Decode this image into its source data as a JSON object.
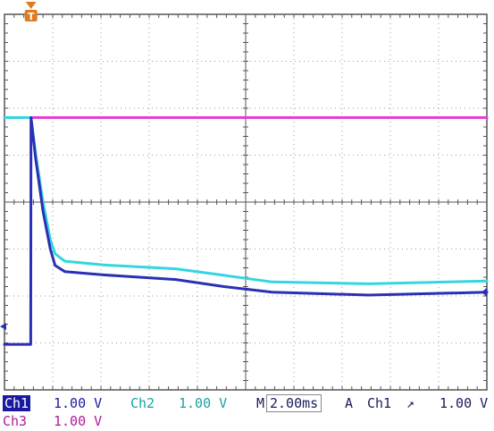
{
  "colors": {
    "ch1": "#2a2fb5",
    "ch2": "#33d6e0",
    "ch3": "#e23fd6",
    "grid": "#9a9a9a",
    "frame": "#555555",
    "trigger_marker": "#e07a1e"
  },
  "icons": {
    "trigger": "trigger-T-marker",
    "ch1_ground": "left-arrow-marker",
    "trigger_level": "left-triangle-marker"
  },
  "chart_data": {
    "type": "line",
    "title": "",
    "xlabel": "",
    "ylabel": "",
    "x_unit": "ms",
    "x_scale_per_div": 2.0,
    "y_scale_per_div": 1.0,
    "x_divisions": 10,
    "y_divisions": 8,
    "xlim": [
      -1.1,
      18.9
    ],
    "ylim": [
      -5.8,
      2.2
    ],
    "grid": true,
    "series": [
      {
        "key": "ch3",
        "x": [
          -1.1,
          0,
          2,
          6,
          10,
          14,
          18.9
        ],
        "y": [
          0.0,
          0.0,
          0.0,
          0.0,
          0.0,
          0.0,
          0.0
        ]
      },
      {
        "key": "ch2",
        "x": [
          -1.1,
          0,
          0.2,
          0.5,
          0.8,
          1.0,
          1.4,
          3,
          6,
          8,
          10,
          14,
          18.9
        ],
        "y": [
          0.0,
          0.0,
          -0.8,
          -1.8,
          -2.6,
          -2.9,
          -3.06,
          -3.14,
          -3.22,
          -3.36,
          -3.5,
          -3.54,
          -3.48
        ]
      },
      {
        "key": "ch1",
        "x": [
          -1.1,
          -0.01,
          0,
          0.2,
          0.5,
          0.8,
          1.0,
          1.4,
          3,
          6,
          8,
          10,
          14,
          18.9
        ],
        "y": [
          -4.83,
          -4.83,
          0.0,
          -0.9,
          -2.0,
          -2.8,
          -3.15,
          -3.28,
          -3.35,
          -3.45,
          -3.6,
          -3.72,
          -3.78,
          -3.72
        ]
      }
    ]
  },
  "status": {
    "ch1_label": "Ch1",
    "ch1_value": "1.00 V",
    "ch2_label": "Ch2",
    "ch2_value": "1.00 V",
    "ch3_label": "Ch3",
    "ch3_value": "1.00 V",
    "timebase_prefix": "M",
    "timebase": "2.00ms",
    "trigger_mode": "A",
    "trigger_source": "Ch1",
    "trigger_slope": "↗",
    "trigger_level": "1.00 V"
  }
}
